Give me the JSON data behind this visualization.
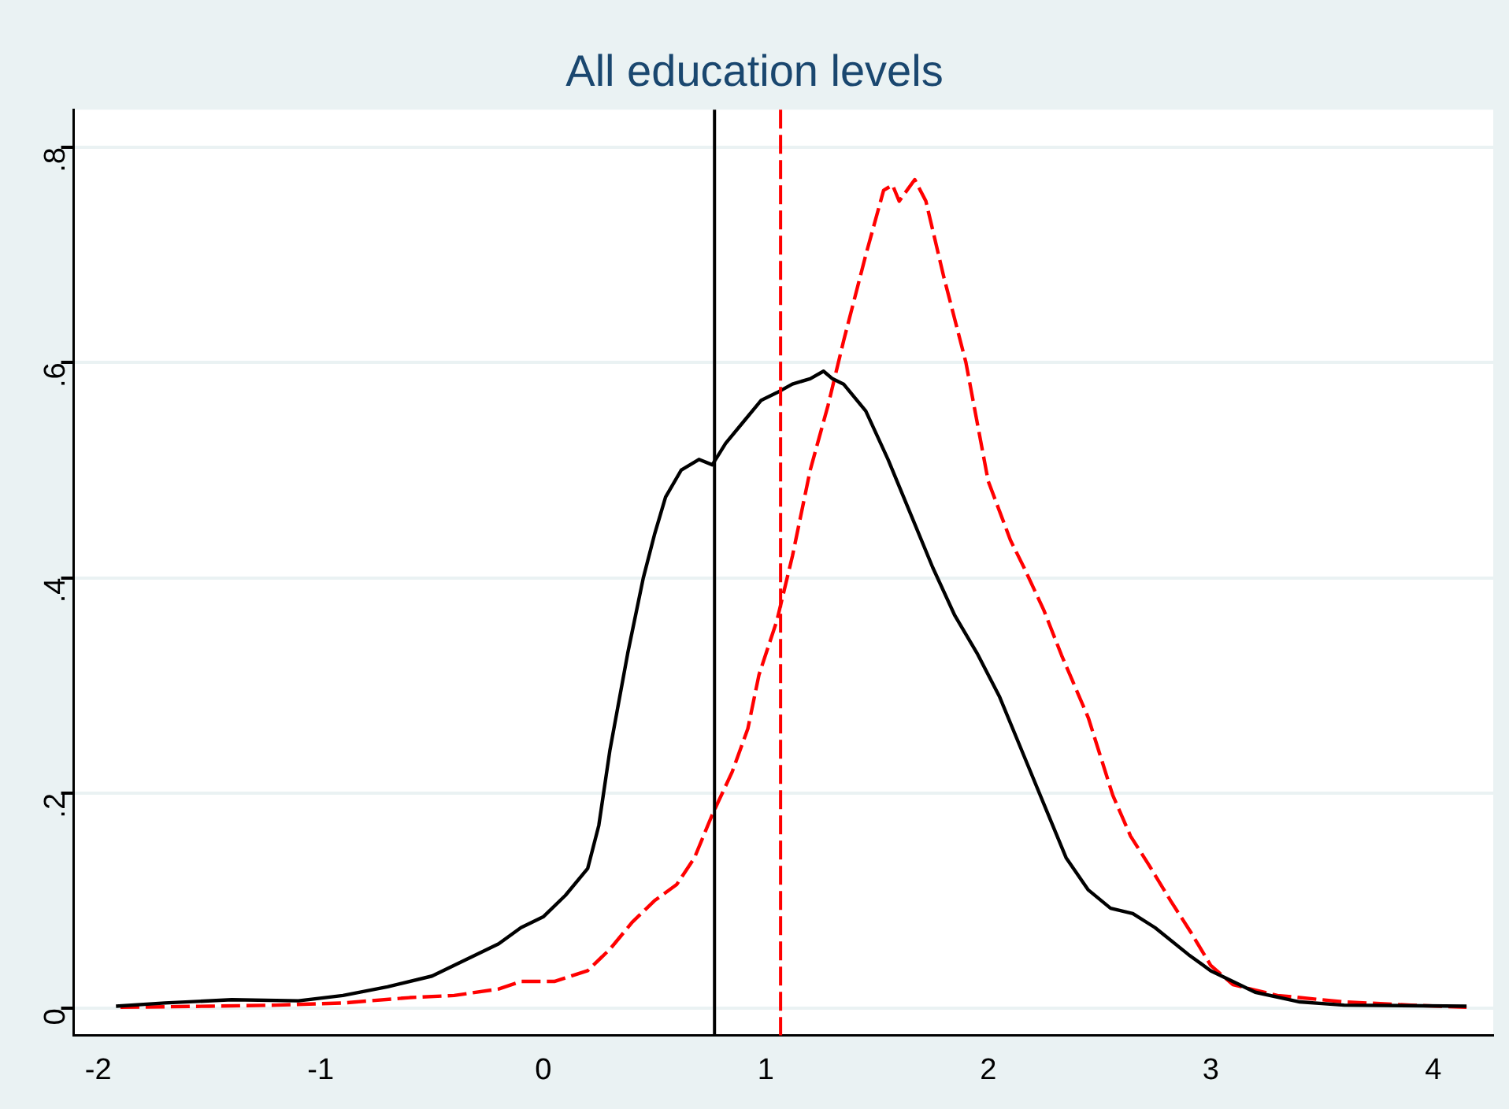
{
  "chart_data": {
    "type": "line",
    "title": "All education levels",
    "xlim": [
      -2.11,
      4.27
    ],
    "xticks": [
      -2,
      -1,
      0,
      1,
      2,
      3,
      4
    ],
    "ylim": [
      -0.025,
      0.835
    ],
    "yticks": [
      0,
      {
        "value": 0.2,
        "label": ".2"
      },
      {
        "value": 0.4,
        "label": ".4"
      },
      {
        "value": 0.6,
        "label": ".6"
      },
      {
        "value": 0.8,
        "label": ".8"
      }
    ],
    "grid": "y",
    "legend": false,
    "marker": "none",
    "series": [
      {
        "color": "#000000",
        "line_style": "solid",
        "x": [
          -1.92,
          -1.7,
          -1.4,
          -1.1,
          -0.9,
          -0.7,
          -0.5,
          -0.35,
          -0.2,
          -0.1,
          0,
          0.1,
          0.2,
          0.25,
          0.3,
          0.38,
          0.45,
          0.5,
          0.55,
          0.62,
          0.7,
          0.76,
          0.82,
          0.9,
          0.98,
          1.05,
          1.12,
          1.2,
          1.26,
          1.3,
          1.35,
          1.45,
          1.55,
          1.65,
          1.75,
          1.85,
          1.95,
          2.05,
          2.15,
          2.25,
          2.35,
          2.45,
          2.55,
          2.65,
          2.75,
          2.9,
          3.0,
          3.2,
          3.4,
          3.6,
          4.15
        ],
        "values": [
          0.002,
          0.005,
          0.008,
          0.007,
          0.012,
          0.02,
          0.03,
          0.045,
          0.06,
          0.075,
          0.085,
          0.105,
          0.13,
          0.17,
          0.24,
          0.33,
          0.4,
          0.44,
          0.475,
          0.5,
          0.51,
          0.505,
          0.525,
          0.545,
          0.565,
          0.572,
          0.58,
          0.585,
          0.592,
          0.585,
          0.58,
          0.555,
          0.51,
          0.46,
          0.41,
          0.365,
          0.33,
          0.29,
          0.24,
          0.19,
          0.14,
          0.11,
          0.093,
          0.088,
          0.075,
          0.05,
          0.035,
          0.015,
          0.006,
          0.003,
          0.002
        ]
      },
      {
        "color": "#ff0000",
        "line_style": "dashed",
        "x": [
          -1.9,
          -1.5,
          -1.2,
          -0.9,
          -0.6,
          -0.4,
          -0.2,
          -0.1,
          0.05,
          0.2,
          0.3,
          0.4,
          0.5,
          0.6,
          0.68,
          0.76,
          0.85,
          0.92,
          0.97,
          1.05,
          1.12,
          1.2,
          1.28,
          1.35,
          1.45,
          1.53,
          1.57,
          1.6,
          1.67,
          1.72,
          1.8,
          1.9,
          2.0,
          2.1,
          2.16,
          2.25,
          2.33,
          2.45,
          2.56,
          2.64,
          2.72,
          2.82,
          2.91,
          3.0,
          3.1,
          3.3,
          3.6,
          3.9,
          4.15
        ],
        "values": [
          0.001,
          0.002,
          0.003,
          0.005,
          0.01,
          0.012,
          0.018,
          0.025,
          0.025,
          0.035,
          0.055,
          0.08,
          0.1,
          0.115,
          0.14,
          0.18,
          0.22,
          0.26,
          0.31,
          0.36,
          0.42,
          0.5,
          0.56,
          0.62,
          0.7,
          0.76,
          0.765,
          0.75,
          0.77,
          0.75,
          0.68,
          0.6,
          0.49,
          0.435,
          0.41,
          0.37,
          0.328,
          0.27,
          0.198,
          0.16,
          0.134,
          0.1,
          0.071,
          0.04,
          0.022,
          0.012,
          0.006,
          0.003,
          0.001
        ]
      }
    ],
    "ref_lines": [
      {
        "axis": "x",
        "value": 0.77,
        "color": "#000000",
        "line_style": "solid"
      },
      {
        "axis": "x",
        "value": 1.067,
        "color": "#ff0000",
        "line_style": "dashed"
      }
    ]
  }
}
